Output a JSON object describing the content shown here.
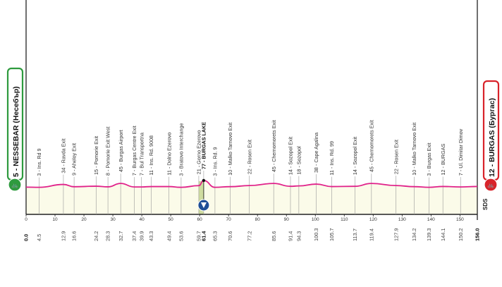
{
  "chart_data": {
    "type": "area",
    "title": "",
    "xlabel": "",
    "ylabel": "",
    "xlim": [
      0,
      156
    ],
    "x_ticks": [
      0,
      10,
      20,
      30,
      40,
      50,
      60,
      70,
      80,
      90,
      100,
      110,
      120,
      130,
      140,
      150
    ],
    "start": {
      "label": "5 - NESSEBAR (Несебър)",
      "km": "0.0",
      "color": "#2e9b3e"
    },
    "finish": {
      "label": "12 - BURGAS (Бургас)",
      "km": "156.0",
      "color": "#d8232a"
    },
    "line_color": "#e0218a",
    "fill_color": "#fbfbe9",
    "intermediate_sprint": {
      "km": 61.4,
      "label": "77 - BURGAS LAKE",
      "icon": "sprint-icon"
    },
    "waypoints": [
      {
        "km": "0.0",
        "alt": 5,
        "label": ""
      },
      {
        "km": "4.5",
        "alt": 3,
        "label": "3 - Ins. Rd 9"
      },
      {
        "km": "12.9",
        "alt": 34,
        "label": "34 - Ravda Exit"
      },
      {
        "km": "16.6",
        "alt": 9,
        "label": "9 - Aheloy Exit"
      },
      {
        "km": "24.2",
        "alt": 15,
        "label": "15 - Pomorie Exit"
      },
      {
        "km": "28.3",
        "alt": 8,
        "label": "8 - Pomorie Exit West"
      },
      {
        "km": "32.7",
        "alt": 45,
        "label": "45 - Burgas Airport"
      },
      {
        "km": "37.4",
        "alt": 7,
        "label": "7 - Burgas Centre Exit"
      },
      {
        "km": "39.9",
        "alt": 7,
        "label": "7 - Bul Transportna"
      },
      {
        "km": "43.3",
        "alt": 11,
        "label": "11 - Ins. Rd. 9008"
      },
      {
        "km": "49.4",
        "alt": 11,
        "label": "11 - Dolno Ezerovo"
      },
      {
        "km": "53.6",
        "alt": 3,
        "label": "3 - Bratovo Interchange"
      },
      {
        "km": "59.7",
        "alt": 21,
        "label": "21 - Gorno Ezerovo"
      },
      {
        "km": "61.4",
        "alt": 77,
        "label": "77 - BURGAS LAKE"
      },
      {
        "km": "65.3",
        "alt": 3,
        "label": "3 - Ins. Rd. 9"
      },
      {
        "km": "70.6",
        "alt": 10,
        "label": "10 - Malko Tarnovo Exit"
      },
      {
        "km": "77.2",
        "alt": 22,
        "label": "22 - Rosen Exit"
      },
      {
        "km": "85.6",
        "alt": 45,
        "label": "45 - Chernomorets Exit"
      },
      {
        "km": "91.4",
        "alt": 14,
        "label": "14 - Sozopol Exit"
      },
      {
        "km": "94.3",
        "alt": 18,
        "label": "18 - Sozopol"
      },
      {
        "km": "100.3",
        "alt": 38,
        "label": "38 - Cape Agalina"
      },
      {
        "km": "105.7",
        "alt": 11,
        "label": "11 - Ins. Rd. 99"
      },
      {
        "km": "113.7",
        "alt": 14,
        "label": "14 - Sozopol Exit"
      },
      {
        "km": "119.4",
        "alt": 45,
        "label": "45 - Chernomorets Exit"
      },
      {
        "km": "127.9",
        "alt": 22,
        "label": "22 - Rosen Exit"
      },
      {
        "km": "134.2",
        "alt": 10,
        "label": "10 - Malko Tarnovo Exit"
      },
      {
        "km": "139.3",
        "alt": 3,
        "label": "3 - Burgas Exit"
      },
      {
        "km": "144.1",
        "alt": 12,
        "label": "12 - BURGAS"
      },
      {
        "km": "150.2",
        "alt": 7,
        "label": "7 - Ul. Dimitar Dimov"
      },
      {
        "km": "156.0",
        "alt": 12,
        "label": ""
      }
    ],
    "logo": "SDS"
  }
}
